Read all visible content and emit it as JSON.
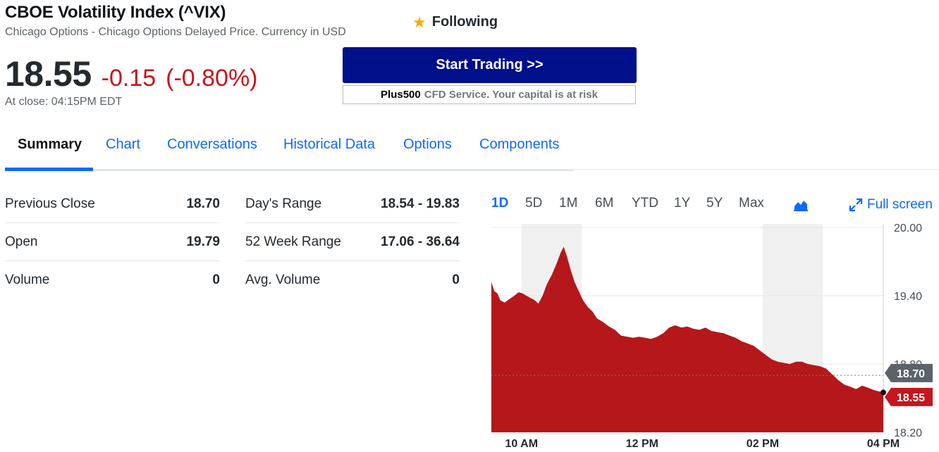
{
  "header": {
    "title": "CBOE Volatility Index (^VIX)",
    "subtitle": "Chicago Options - Chicago Options Delayed Price. Currency in USD",
    "follow_label": "Following"
  },
  "quote": {
    "price": "18.55",
    "change": "-0.15",
    "change_pct": "(-0.80%)",
    "close_time": "At close: 04:15PM EDT"
  },
  "ad": {
    "button_label": "Start Trading >>",
    "brand": "Plus500",
    "note": "CFD Service. Your capital is at risk"
  },
  "tabs": [
    "Summary",
    "Chart",
    "Conversations",
    "Historical Data",
    "Options",
    "Components"
  ],
  "stats_left": [
    {
      "label": "Previous Close",
      "value": "18.70"
    },
    {
      "label": "Open",
      "value": "19.79"
    },
    {
      "label": "Volume",
      "value": "0"
    }
  ],
  "stats_right": [
    {
      "label": "Day's Range",
      "value": "18.54 - 19.83"
    },
    {
      "label": "52 Week Range",
      "value": "17.06 - 36.64"
    },
    {
      "label": "Avg. Volume",
      "value": "0"
    }
  ],
  "chart_controls": {
    "ranges": [
      "1D",
      "5D",
      "1M",
      "6M",
      "YTD",
      "1Y",
      "5Y",
      "Max"
    ],
    "active_range": "1D",
    "chart_type_icon": "mountain-chart-icon",
    "fullscreen_label": "Full screen"
  },
  "colors": {
    "accent": "#0f69ff",
    "negative": "#c5161d",
    "area_fill": "#b5171a",
    "prev_close_tag": "#5b636a",
    "button": "#000f8a"
  },
  "chart_data": {
    "type": "area",
    "x_ticks": [
      "10 AM",
      "12 PM",
      "02 PM",
      "04 PM"
    ],
    "y_ticks": [
      20.0,
      19.4,
      18.8,
      18.2
    ],
    "y_tick_labels": [
      "20.00",
      "19.40",
      "18.80",
      "18.20"
    ],
    "ylim": [
      18.2,
      20.0
    ],
    "x_hours": [
      9.5,
      16.0
    ],
    "prev_close": 18.7,
    "prev_close_label": "18.70",
    "last_price": 18.55,
    "last_price_label": "18.55",
    "series": [
      {
        "values": [
          [
            9.5,
            19.52
          ],
          [
            9.55,
            19.44
          ],
          [
            9.6,
            19.42
          ],
          [
            9.65,
            19.36
          ],
          [
            9.72,
            19.34
          ],
          [
            9.8,
            19.37
          ],
          [
            9.88,
            19.4
          ],
          [
            9.95,
            19.43
          ],
          [
            10.02,
            19.42
          ],
          [
            10.08,
            19.4
          ],
          [
            10.15,
            19.38
          ],
          [
            10.22,
            19.36
          ],
          [
            10.28,
            19.33
          ],
          [
            10.35,
            19.4
          ],
          [
            10.42,
            19.5
          ],
          [
            10.5,
            19.58
          ],
          [
            10.58,
            19.68
          ],
          [
            10.65,
            19.78
          ],
          [
            10.7,
            19.83
          ],
          [
            10.75,
            19.75
          ],
          [
            10.82,
            19.62
          ],
          [
            10.88,
            19.52
          ],
          [
            10.95,
            19.44
          ],
          [
            11.02,
            19.36
          ],
          [
            11.1,
            19.3
          ],
          [
            11.18,
            19.26
          ],
          [
            11.25,
            19.2
          ],
          [
            11.35,
            19.17
          ],
          [
            11.45,
            19.13
          ],
          [
            11.55,
            19.1
          ],
          [
            11.65,
            19.05
          ],
          [
            11.75,
            19.04
          ],
          [
            11.85,
            19.03
          ],
          [
            11.95,
            19.04
          ],
          [
            12.05,
            19.03
          ],
          [
            12.15,
            19.02
          ],
          [
            12.25,
            19.04
          ],
          [
            12.35,
            19.07
          ],
          [
            12.45,
            19.12
          ],
          [
            12.55,
            19.14
          ],
          [
            12.65,
            19.12
          ],
          [
            12.75,
            19.13
          ],
          [
            12.85,
            19.11
          ],
          [
            12.95,
            19.1
          ],
          [
            13.05,
            19.12
          ],
          [
            13.15,
            19.09
          ],
          [
            13.25,
            19.08
          ],
          [
            13.35,
            19.07
          ],
          [
            13.45,
            19.05
          ],
          [
            13.55,
            19.03
          ],
          [
            13.65,
            19.0
          ],
          [
            13.75,
            18.98
          ],
          [
            13.85,
            18.96
          ],
          [
            13.95,
            18.92
          ],
          [
            14.05,
            18.88
          ],
          [
            14.15,
            18.84
          ],
          [
            14.25,
            18.82
          ],
          [
            14.35,
            18.81
          ],
          [
            14.45,
            18.8
          ],
          [
            14.55,
            18.82
          ],
          [
            14.65,
            18.82
          ],
          [
            14.75,
            18.8
          ],
          [
            14.85,
            18.79
          ],
          [
            14.95,
            18.78
          ],
          [
            15.05,
            18.76
          ],
          [
            15.15,
            18.71
          ],
          [
            15.25,
            18.66
          ],
          [
            15.35,
            18.62
          ],
          [
            15.45,
            18.6
          ],
          [
            15.55,
            18.58
          ],
          [
            15.65,
            18.61
          ],
          [
            15.75,
            18.59
          ],
          [
            15.85,
            18.57
          ],
          [
            15.92,
            18.56
          ],
          [
            16.0,
            18.55
          ]
        ]
      }
    ]
  }
}
